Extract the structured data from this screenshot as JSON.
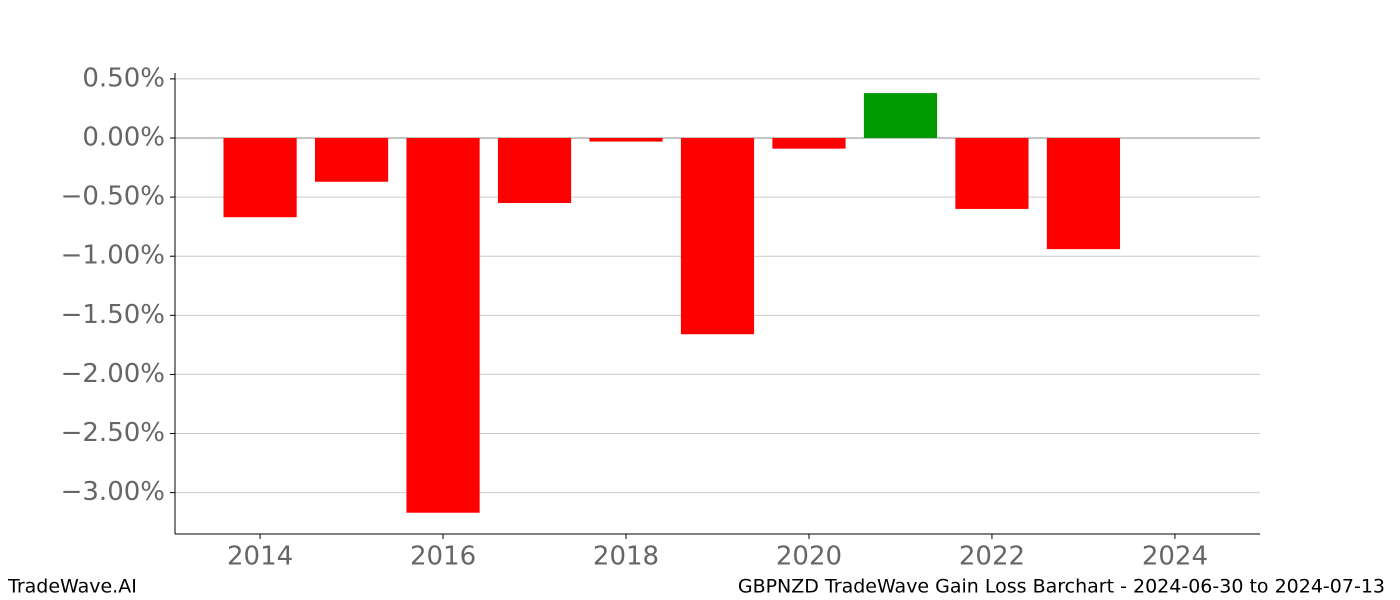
{
  "chart_data": {
    "type": "bar",
    "title": "GBPNZD TradeWave Gain Loss Barchart - 2024-06-30 to 2024-07-13",
    "brand": "TradeWave.AI",
    "x": [
      2014,
      2015,
      2016,
      2017,
      2018,
      2019,
      2020,
      2021,
      2022,
      2023
    ],
    "values": [
      -0.67,
      -0.37,
      -3.17,
      -0.55,
      -0.03,
      -1.66,
      -0.09,
      0.38,
      -0.6,
      -0.94
    ],
    "colors": [
      "#ff0000",
      "#ff0000",
      "#ff0000",
      "#ff0000",
      "#ff0000",
      "#ff0000",
      "#ff0000",
      "#009900",
      "#ff0000",
      "#ff0000"
    ],
    "xlim": [
      2013.07,
      2024.93
    ],
    "xticks": [
      2014,
      2016,
      2018,
      2020,
      2022,
      2024
    ],
    "ylim": [
      -3.35,
      0.55
    ],
    "yticks": [
      {
        "value": 0.5,
        "label": "0.50%"
      },
      {
        "value": 0,
        "label": "0.00%"
      },
      {
        "value": -0.5,
        "label": "−0.50%"
      },
      {
        "value": -1,
        "label": "−1.00%"
      },
      {
        "value": -1.5,
        "label": "−1.50%"
      },
      {
        "value": -2,
        "label": "−2.00%"
      },
      {
        "value": -2.5,
        "label": "−2.50%"
      },
      {
        "value": -3,
        "label": "−3.00%"
      }
    ],
    "grid": true
  }
}
